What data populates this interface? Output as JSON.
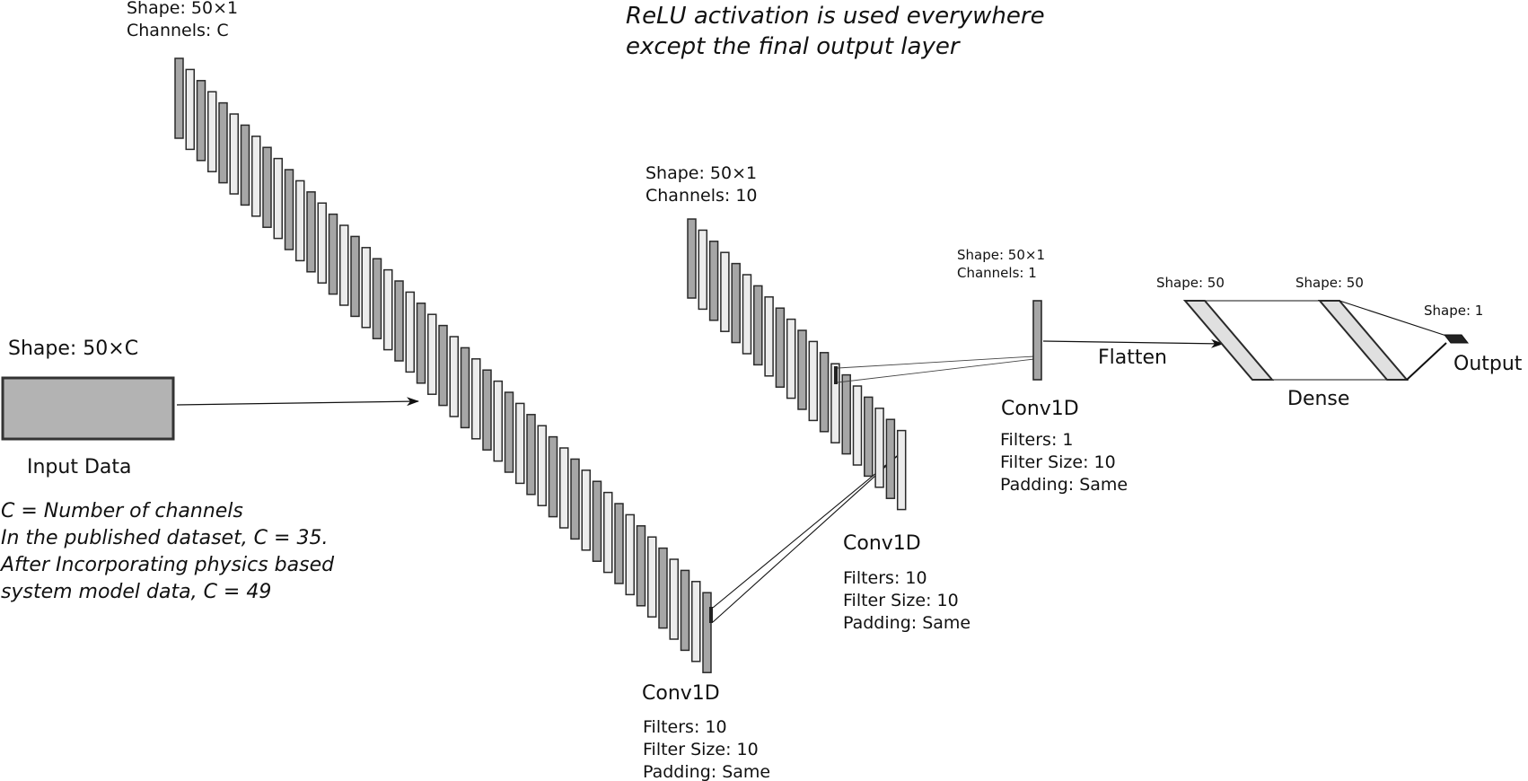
{
  "note_top": {
    "line1": "ReLU activation is used everywhere",
    "line2": "except the final output layer"
  },
  "input": {
    "shape_label": "Shape: 50×C",
    "caption": "Input Data",
    "fill": "#b3b3b3",
    "notes": [
      "C = Number of channels",
      "In the published dataset, C = 35.",
      "After Incorporating physics based",
      "system model data, C = 49"
    ]
  },
  "conv1": {
    "shape_label": "Shape: 50×1",
    "channels_label": "Channels: C",
    "title": "Conv1D",
    "details": [
      "Filters: 10",
      "Filter Size: 10",
      "Padding: Same"
    ]
  },
  "conv2": {
    "shape_label": "Shape: 50×1",
    "channels_label": "Channels: 10",
    "title": "Conv1D",
    "details": [
      "Filters: 10",
      "Filter Size: 10",
      "Padding: Same"
    ]
  },
  "conv3": {
    "shape_label": "Shape: 50×1",
    "channels_label": "Channels: 1",
    "title": "Conv1D",
    "details": [
      "Filters: 1",
      "Filter Size: 10",
      "Padding: Same"
    ]
  },
  "flatten_label": "Flatten",
  "dense": {
    "shape1": "Shape: 50",
    "shape2": "Shape: 50",
    "title": "Dense"
  },
  "output": {
    "shape_label": "Shape: 1",
    "caption": "Output"
  },
  "colors": {
    "bar_dark": "#a6a6a6",
    "bar_light": "#ececec",
    "dense_fill": "#e0e0e0",
    "stroke": "#2a2a2a"
  }
}
